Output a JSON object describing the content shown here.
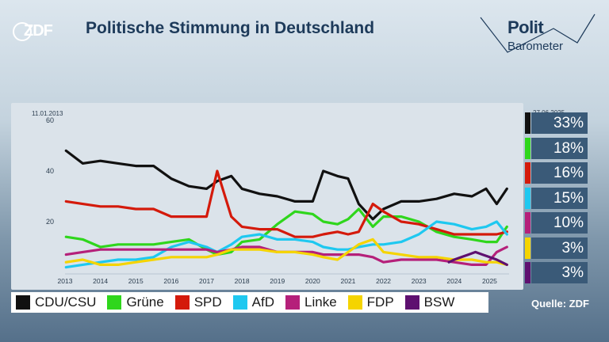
{
  "header": {
    "logo": "ZDF",
    "title": "Politische Stimmung in Deutschland",
    "brand_top": "Polit",
    "brand_bottom": "Barometer"
  },
  "chart_data": {
    "type": "line",
    "start_date": "11.01.2013",
    "end_date": "27.06.2025",
    "ylim": [
      0,
      60
    ],
    "yticks": [
      20,
      40,
      60
    ],
    "xticks": [
      "2013",
      "2014",
      "2015",
      "2016",
      "2017",
      "2018",
      "2019",
      "2020",
      "2021",
      "2022",
      "2023",
      "2024",
      "2025"
    ],
    "series": [
      {
        "name": "CDU/CSU",
        "color": "#111111",
        "x": [
          2013.03,
          2013.5,
          2014,
          2014.5,
          2015,
          2015.5,
          2016,
          2016.5,
          2017,
          2017.3,
          2017.7,
          2018,
          2018.5,
          2019,
          2019.5,
          2020,
          2020.3,
          2020.7,
          2021,
          2021.3,
          2021.7,
          2022,
          2022.5,
          2023,
          2023.5,
          2024,
          2024.5,
          2024.9,
          2025.2,
          2025.49
        ],
        "values": [
          48,
          43,
          44,
          43,
          42,
          42,
          37,
          34,
          33,
          36,
          38,
          33,
          31,
          30,
          28,
          28,
          40,
          38,
          37,
          27,
          21,
          25,
          28,
          28,
          29,
          31,
          30,
          33,
          27,
          33
        ]
      },
      {
        "name": "Grüne",
        "color": "#2fd61c",
        "x": [
          2013.03,
          2013.5,
          2014,
          2014.5,
          2015,
          2015.5,
          2016,
          2016.5,
          2017,
          2017.3,
          2017.7,
          2018,
          2018.5,
          2019,
          2019.5,
          2020,
          2020.3,
          2020.7,
          2021,
          2021.3,
          2021.7,
          2022,
          2022.5,
          2023,
          2023.5,
          2024,
          2024.5,
          2024.9,
          2025.2,
          2025.49
        ],
        "values": [
          14,
          13,
          10,
          11,
          11,
          11,
          12,
          13,
          9,
          7,
          8,
          12,
          13,
          19,
          24,
          23,
          20,
          19,
          21,
          25,
          18,
          22,
          22,
          20,
          16,
          14,
          13,
          12,
          12,
          18
        ]
      },
      {
        "name": "SPD",
        "color": "#d41a0b",
        "x": [
          2013.03,
          2013.5,
          2014,
          2014.5,
          2015,
          2015.5,
          2016,
          2016.5,
          2017,
          2017.3,
          2017.7,
          2018,
          2018.5,
          2019,
          2019.5,
          2020,
          2020.3,
          2020.7,
          2021,
          2021.3,
          2021.7,
          2022,
          2022.5,
          2023,
          2023.5,
          2024,
          2024.5,
          2024.9,
          2025.2,
          2025.49
        ],
        "values": [
          28,
          27,
          26,
          26,
          25,
          25,
          22,
          22,
          22,
          40,
          22,
          18,
          17,
          17,
          14,
          14,
          15,
          16,
          15,
          16,
          27,
          24,
          20,
          19,
          17,
          15,
          15,
          15,
          15,
          16
        ]
      },
      {
        "name": "AfD",
        "color": "#1ec8f0",
        "x": [
          2013.03,
          2013.5,
          2014,
          2014.5,
          2015,
          2015.5,
          2016,
          2016.5,
          2017,
          2017.3,
          2017.7,
          2018,
          2018.5,
          2019,
          2019.5,
          2020,
          2020.3,
          2020.7,
          2021,
          2021.3,
          2021.7,
          2022,
          2022.5,
          2023,
          2023.5,
          2024,
          2024.5,
          2024.9,
          2025.2,
          2025.49
        ],
        "values": [
          2,
          3,
          4,
          5,
          5,
          6,
          10,
          12,
          10,
          8,
          11,
          14,
          15,
          13,
          13,
          12,
          10,
          9,
          9,
          10,
          11,
          11,
          12,
          15,
          20,
          19,
          17,
          18,
          20,
          15
        ]
      },
      {
        "name": "Linke",
        "color": "#b5207a",
        "x": [
          2013.03,
          2013.5,
          2014,
          2014.5,
          2015,
          2015.5,
          2016,
          2016.5,
          2017,
          2017.3,
          2017.7,
          2018,
          2018.5,
          2019,
          2019.5,
          2020,
          2020.3,
          2020.7,
          2021,
          2021.3,
          2021.7,
          2022,
          2022.5,
          2023,
          2023.5,
          2024,
          2024.5,
          2024.9,
          2025.2,
          2025.49
        ],
        "values": [
          7,
          8,
          9,
          9,
          9,
          9,
          9,
          9,
          9,
          8,
          9,
          10,
          10,
          8,
          8,
          8,
          7,
          7,
          7,
          7,
          6,
          4,
          5,
          5,
          5,
          4,
          3,
          3,
          8,
          10
        ]
      },
      {
        "name": "FDP",
        "color": "#f5d400",
        "x": [
          2013.03,
          2013.5,
          2014,
          2014.5,
          2015,
          2015.5,
          2016,
          2016.5,
          2017,
          2017.3,
          2017.7,
          2018,
          2018.5,
          2019,
          2019.5,
          2020,
          2020.3,
          2020.7,
          2021,
          2021.3,
          2021.7,
          2022,
          2022.5,
          2023,
          2023.5,
          2024,
          2024.5,
          2024.9,
          2025.2,
          2025.49
        ],
        "values": [
          4,
          5,
          3,
          3,
          4,
          5,
          6,
          6,
          6,
          7,
          9,
          9,
          9,
          8,
          8,
          7,
          6,
          5,
          8,
          11,
          13,
          8,
          7,
          6,
          6,
          5,
          5,
          4,
          4,
          3
        ]
      },
      {
        "name": "BSW",
        "color": "#5e1070",
        "x": [
          2023.85,
          2024,
          2024.2,
          2024.4,
          2024.6,
          2024.8,
          2025,
          2025.2,
          2025.49
        ],
        "values": [
          4,
          5,
          6,
          7,
          8,
          7,
          6,
          5,
          3
        ]
      }
    ],
    "results": [
      {
        "party": "CDU/CSU",
        "label": "33%",
        "color": "#111111"
      },
      {
        "party": "Grüne",
        "label": "18%",
        "color": "#2fd61c"
      },
      {
        "party": "SPD",
        "label": "16%",
        "color": "#d41a0b"
      },
      {
        "party": "AfD",
        "label": "15%",
        "color": "#1ec8f0"
      },
      {
        "party": "Linke",
        "label": "10%",
        "color": "#b5207a"
      },
      {
        "party": "FDP",
        "label": "3%",
        "color": "#f5d400"
      },
      {
        "party": "BSW",
        "label": "3%",
        "color": "#5e1070"
      }
    ]
  },
  "legend": [
    {
      "label": "CDU/CSU",
      "color": "#111111"
    },
    {
      "label": "Grüne",
      "color": "#2fd61c"
    },
    {
      "label": "SPD",
      "color": "#d41a0b"
    },
    {
      "label": "AfD",
      "color": "#1ec8f0"
    },
    {
      "label": "Linke",
      "color": "#b5207a"
    },
    {
      "label": "FDP",
      "color": "#f5d400"
    },
    {
      "label": "BSW",
      "color": "#5e1070"
    }
  ],
  "footer": {
    "source": "Quelle: ZDF"
  }
}
